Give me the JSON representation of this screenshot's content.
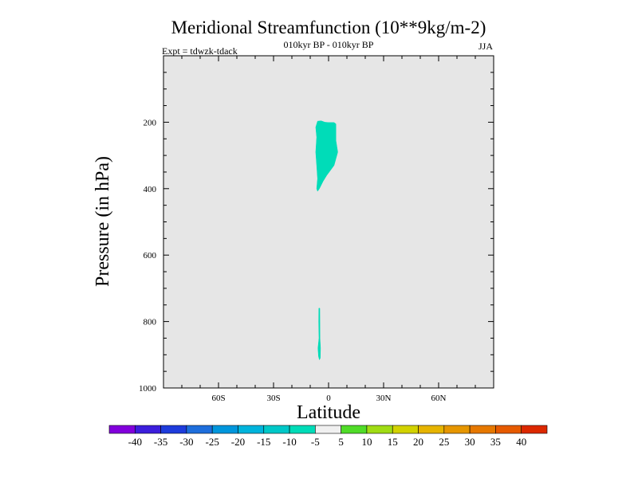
{
  "chart_data": {
    "type": "contour",
    "title": "Meridional Streamfunction (10**9kg/m-2)",
    "subtitle": "010kyr BP - 010kyr BP",
    "left_label": "Expt = tdwzk-tdack",
    "right_label": "JJA",
    "xlabel": "Latitude",
    "ylabel": "Pressure (in hPa)",
    "xlim": [
      -90,
      90
    ],
    "ylim": [
      1000,
      0
    ],
    "x_ticks": [
      {
        "value": -60,
        "label": "60S"
      },
      {
        "value": -30,
        "label": "30S"
      },
      {
        "value": 0,
        "label": "0"
      },
      {
        "value": 30,
        "label": "30N"
      },
      {
        "value": 60,
        "label": "60N"
      }
    ],
    "y_ticks": [
      {
        "value": 200,
        "label": "200"
      },
      {
        "value": 400,
        "label": "400"
      },
      {
        "value": 600,
        "label": "600"
      },
      {
        "value": 800,
        "label": "800"
      },
      {
        "value": 1000,
        "label": "1000"
      }
    ],
    "background_color": "#e6e6e6",
    "regions": [
      {
        "level": "-10 to -5",
        "color": "#00dcb8",
        "points": [
          [
            -6,
            197
          ],
          [
            -4,
            196
          ],
          [
            -2,
            200
          ],
          [
            0,
            201
          ],
          [
            3,
            201
          ],
          [
            4,
            205
          ],
          [
            4,
            255
          ],
          [
            5,
            290
          ],
          [
            4,
            310
          ],
          [
            3,
            330
          ],
          [
            1,
            345
          ],
          [
            -1,
            360
          ],
          [
            -3,
            378
          ],
          [
            -5,
            400
          ],
          [
            -6,
            408
          ],
          [
            -6.5,
            400
          ],
          [
            -6,
            370
          ],
          [
            -6.5,
            330
          ],
          [
            -7,
            290
          ],
          [
            -6.5,
            245
          ],
          [
            -7,
            215
          ]
        ]
      },
      {
        "level": "-10 to -5",
        "color": "#00dcb8",
        "points": [
          [
            -5.3,
            760
          ],
          [
            -4.8,
            760
          ],
          [
            -4.7,
            850
          ],
          [
            -4.4,
            880
          ],
          [
            -4.5,
            910
          ],
          [
            -5,
            915
          ],
          [
            -5.5,
            905
          ],
          [
            -5.8,
            880
          ],
          [
            -5.2,
            850
          ],
          [
            -5.4,
            800
          ]
        ]
      }
    ],
    "colorbar": {
      "colors": [
        "#8200dc",
        "#3c1edc",
        "#1e3cdc",
        "#1e6edc",
        "#0096dc",
        "#00b4dc",
        "#00c8c8",
        "#00dcb8",
        "#f0f0f0",
        "#50dc28",
        "#a0dc14",
        "#d2d200",
        "#e6b400",
        "#e69600",
        "#e67800",
        "#e65a00",
        "#dc2800"
      ],
      "labels": [
        "-40",
        "-35",
        "-30",
        "-25",
        "-20",
        "-15",
        "-10",
        "-5",
        "5",
        "10",
        "15",
        "20",
        "25",
        "30",
        "35",
        "40"
      ]
    }
  }
}
